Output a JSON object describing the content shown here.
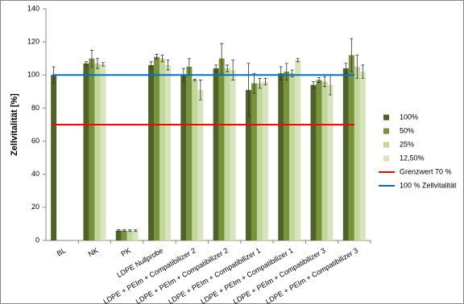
{
  "chart_data": {
    "type": "bar",
    "y_label": "Zellvitalität [%]",
    "categories": [
      "BL",
      "NK",
      "PK",
      "LDPE Nullprobe",
      "LDPE + PEIm + Compatibilizer 2",
      "LDPE + PEIm + Compatibilizer 2",
      "LDPE + PEIm + Compatibilizer 1",
      "LDPE + PEIm + Compatibilizer 1",
      "LDPE + PEIm + Compatibilizer 3",
      "LDPE + PEIm + Compatibilizer 3"
    ],
    "series": [
      {
        "name": "100%",
        "color": "#4f6228",
        "values": [
          100,
          107,
          6,
          106,
          100,
          104,
          91,
          101,
          94,
          104
        ],
        "errors": [
          5,
          1,
          0.5,
          2,
          4,
          2,
          16,
          4,
          2,
          3
        ]
      },
      {
        "name": "50%",
        "color": "#77933c",
        "values": [
          null,
          110,
          6,
          111,
          105,
          110,
          95,
          102,
          97,
          112
        ],
        "errors": [
          null,
          5,
          0.5,
          1.5,
          5,
          9,
          6,
          5,
          1.5,
          10
        ]
      },
      {
        "name": "25%",
        "color": "#c3d69b",
        "values": [
          null,
          107,
          6,
          110,
          97,
          104,
          95,
          101,
          96,
          105
        ],
        "errors": [
          null,
          3,
          0.5,
          2,
          0.5,
          2,
          3,
          2,
          3,
          7
        ]
      },
      {
        "name": "12,50%",
        "color": "#d7e4bd",
        "values": [
          null,
          106.5,
          6,
          106,
          91,
          103,
          96,
          109,
          94,
          102
        ],
        "errors": [
          null,
          1,
          0.5,
          3,
          6,
          6,
          2,
          1,
          6,
          4
        ]
      }
    ],
    "reference_lines": [
      {
        "name": "Grenzwert 70 %",
        "color": "#ff0000",
        "value": 70
      },
      {
        "name": "100 % Zellvitalität",
        "color": "#0070c0",
        "value": 100
      }
    ],
    "ylim": [
      0,
      140
    ],
    "yticks": [
      0,
      20,
      40,
      60,
      80,
      100,
      120,
      140
    ],
    "legend": "right"
  }
}
